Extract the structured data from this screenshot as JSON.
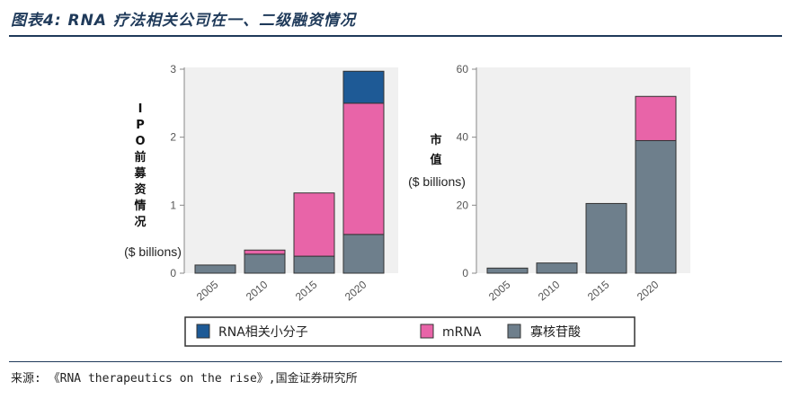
{
  "title": "图表4: RNA 疗法相关公司在一、二级融资情况",
  "source": "来源: 《RNA therapeutics on the rise》,国金证券研究所",
  "legend": [
    {
      "label": "RNA相关小分子",
      "color": "#1e5a96"
    },
    {
      "label": "mRNA",
      "color": "#e864a8"
    },
    {
      "label": "寡核苷酸",
      "color": "#6e7f8c"
    }
  ],
  "chart_data": [
    {
      "type": "bar",
      "stacked": true,
      "ylabel": "IPO前募资情况",
      "yunit": "($ billions)",
      "categories": [
        "2005",
        "2010",
        "2015",
        "2020"
      ],
      "ylim": [
        0,
        3
      ],
      "yticks": [
        "0",
        "1",
        "2",
        "3"
      ],
      "series": [
        {
          "name": "寡核苷酸",
          "values": [
            0.12,
            0.28,
            0.25,
            0.57
          ]
        },
        {
          "name": "mRNA",
          "values": [
            0,
            0.06,
            0.93,
            1.93
          ]
        },
        {
          "name": "RNA相关小分子",
          "values": [
            0,
            0,
            0,
            0.47
          ]
        }
      ]
    },
    {
      "type": "bar",
      "stacked": true,
      "ylabel": "市值",
      "yunit": "($ billions)",
      "categories": [
        "2005",
        "2010",
        "2015",
        "2020"
      ],
      "ylim": [
        0,
        60
      ],
      "yticks": [
        "0",
        "20",
        "40",
        "60"
      ],
      "series": [
        {
          "name": "寡核苷酸",
          "values": [
            1.5,
            3,
            20.5,
            39
          ]
        },
        {
          "name": "mRNA",
          "values": [
            0,
            0,
            0,
            13
          ]
        },
        {
          "name": "RNA相关小分子",
          "values": [
            0,
            0,
            0,
            0
          ]
        }
      ]
    }
  ]
}
